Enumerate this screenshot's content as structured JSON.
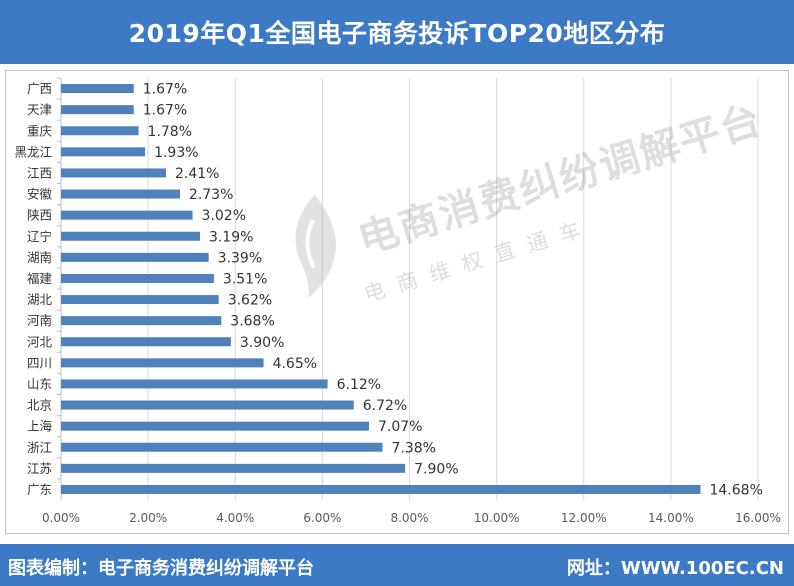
{
  "title": "2019年Q1全国电子商务投诉TOP20地区分布",
  "footer": {
    "left": "图表编制：电子商务消费纠纷调解平台",
    "right": "网址：WWW.100EC.CN"
  },
  "watermark": {
    "main": "电商消费纠纷调解平台",
    "sub": "电商维权直通车"
  },
  "chart_data": {
    "type": "bar",
    "orientation": "horizontal",
    "categories": [
      "广西",
      "天津",
      "重庆",
      "黑龙江",
      "江西",
      "安徽",
      "陕西",
      "辽宁",
      "湖南",
      "福建",
      "湖北",
      "河南",
      "河北",
      "四川",
      "山东",
      "北京",
      "上海",
      "浙江",
      "江苏",
      "广东"
    ],
    "values": [
      1.67,
      1.67,
      1.78,
      1.93,
      2.41,
      2.73,
      3.02,
      3.19,
      3.39,
      3.51,
      3.62,
      3.68,
      3.9,
      4.65,
      6.12,
      6.72,
      7.07,
      7.38,
      7.9,
      14.68
    ],
    "value_labels": [
      "1.67%",
      "1.67%",
      "1.78%",
      "1.93%",
      "2.41%",
      "2.73%",
      "3.02%",
      "3.19%",
      "3.39%",
      "3.51%",
      "3.62%",
      "3.68%",
      "3.90%",
      "4.65%",
      "6.12%",
      "6.72%",
      "7.07%",
      "7.38%",
      "7.90%",
      "14.68%"
    ],
    "xlim": [
      0,
      16
    ],
    "xticks": [
      0,
      2,
      4,
      6,
      8,
      10,
      12,
      14,
      16
    ],
    "xtick_labels": [
      "0.00%",
      "2.00%",
      "4.00%",
      "6.00%",
      "8.00%",
      "10.00%",
      "12.00%",
      "14.00%",
      "16.00%"
    ],
    "grid": "vertical",
    "bar_color": "#4f81bd",
    "legend": "none"
  },
  "colors": {
    "header": "#3d7ac6",
    "bar": "#4f81bd",
    "gridline": "#d9d9d9"
  }
}
